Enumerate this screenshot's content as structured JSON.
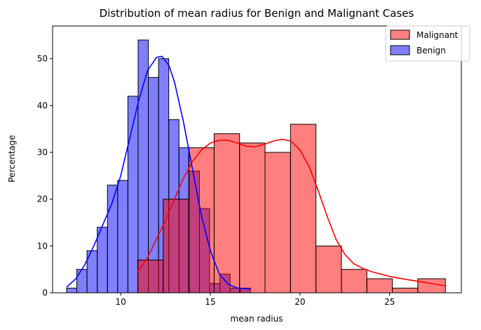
{
  "chart_data": {
    "type": "histogram",
    "title": "Distribution of mean radius for Benign and Malignant Cases",
    "xlabel": "mean radius",
    "ylabel": "Percentage",
    "xlim": [
      6.2,
      29.0
    ],
    "ylim": [
      0,
      57
    ],
    "xticks": [
      10,
      15,
      20,
      25
    ],
    "yticks": [
      0,
      10,
      20,
      30,
      40,
      50
    ],
    "grid": false,
    "legend_position": "top-right",
    "series": [
      {
        "name": "Malignant",
        "color": "#ff0000",
        "fill": "#ff8080",
        "bins": [
          {
            "x0": 10.95,
            "x1": 12.37,
            "value": 7
          },
          {
            "x0": 12.37,
            "x1": 13.79,
            "value": 20
          },
          {
            "x0": 13.79,
            "x1": 15.21,
            "value": 31
          },
          {
            "x0": 15.21,
            "x1": 16.63,
            "value": 34
          },
          {
            "x0": 16.63,
            "x1": 18.05,
            "value": 32
          },
          {
            "x0": 18.05,
            "x1": 19.47,
            "value": 30
          },
          {
            "x0": 19.47,
            "x1": 20.89,
            "value": 36
          },
          {
            "x0": 20.89,
            "x1": 22.31,
            "value": 10
          },
          {
            "x0": 22.31,
            "x1": 23.73,
            "value": 5
          },
          {
            "x0": 23.73,
            "x1": 25.15,
            "value": 3
          },
          {
            "x0": 25.15,
            "x1": 26.57,
            "value": 1
          },
          {
            "x0": 26.57,
            "x1": 28.11,
            "value": 3
          }
        ],
        "kde": [
          [
            10.95,
            4.5
          ],
          [
            11.5,
            7.5
          ],
          [
            12.0,
            11.5
          ],
          [
            12.5,
            15.5
          ],
          [
            13.0,
            20.0
          ],
          [
            13.5,
            24.5
          ],
          [
            14.0,
            28.0
          ],
          [
            14.5,
            30.5
          ],
          [
            15.0,
            32.0
          ],
          [
            15.5,
            32.6
          ],
          [
            16.0,
            32.6
          ],
          [
            16.5,
            32.0
          ],
          [
            17.0,
            31.3
          ],
          [
            17.5,
            31.2
          ],
          [
            18.0,
            31.7
          ],
          [
            18.5,
            32.4
          ],
          [
            19.0,
            32.8
          ],
          [
            19.5,
            32.4
          ],
          [
            20.0,
            30.5
          ],
          [
            20.5,
            27.0
          ],
          [
            21.0,
            22.0
          ],
          [
            21.5,
            16.5
          ],
          [
            22.0,
            11.5
          ],
          [
            22.5,
            8.2
          ],
          [
            23.0,
            6.2
          ],
          [
            23.5,
            5.2
          ],
          [
            24.0,
            4.5
          ],
          [
            25.0,
            3.5
          ],
          [
            26.0,
            2.8
          ],
          [
            27.0,
            2.2
          ],
          [
            28.11,
            1.5
          ]
        ]
      },
      {
        "name": "Benign",
        "color": "#0000ff",
        "fill": "#8080ff",
        "bins": [
          {
            "x0": 6.98,
            "x1": 7.55,
            "value": 1
          },
          {
            "x0": 7.55,
            "x1": 8.12,
            "value": 5
          },
          {
            "x0": 8.12,
            "x1": 8.69,
            "value": 9
          },
          {
            "x0": 8.69,
            "x1": 9.26,
            "value": 14
          },
          {
            "x0": 9.26,
            "x1": 9.83,
            "value": 23
          },
          {
            "x0": 9.83,
            "x1": 10.4,
            "value": 24
          },
          {
            "x0": 10.4,
            "x1": 10.97,
            "value": 42
          },
          {
            "x0": 10.97,
            "x1": 11.54,
            "value": 54
          },
          {
            "x0": 11.54,
            "x1": 12.11,
            "value": 46
          },
          {
            "x0": 12.11,
            "x1": 12.68,
            "value": 50
          },
          {
            "x0": 12.68,
            "x1": 13.25,
            "value": 37
          },
          {
            "x0": 13.25,
            "x1": 13.82,
            "value": 31
          },
          {
            "x0": 13.82,
            "x1": 14.39,
            "value": 26
          },
          {
            "x0": 14.39,
            "x1": 14.96,
            "value": 18
          },
          {
            "x0": 14.96,
            "x1": 15.53,
            "value": 2
          },
          {
            "x0": 15.53,
            "x1": 16.1,
            "value": 4
          },
          {
            "x0": 16.1,
            "x1": 16.67,
            "value": 1
          },
          {
            "x0": 16.67,
            "x1": 17.24,
            "value": 1
          }
        ],
        "kde": [
          [
            6.98,
            1.2
          ],
          [
            7.5,
            3.0
          ],
          [
            8.0,
            6.0
          ],
          [
            8.5,
            10.0
          ],
          [
            9.0,
            14.5
          ],
          [
            9.5,
            19.0
          ],
          [
            10.0,
            25.0
          ],
          [
            10.5,
            33.0
          ],
          [
            11.0,
            41.0
          ],
          [
            11.5,
            47.5
          ],
          [
            12.0,
            50.3
          ],
          [
            12.3,
            50.5
          ],
          [
            12.7,
            48.5
          ],
          [
            13.0,
            45.0
          ],
          [
            13.5,
            36.5
          ],
          [
            14.0,
            26.5
          ],
          [
            14.5,
            16.5
          ],
          [
            15.0,
            9.0
          ],
          [
            15.5,
            4.0
          ],
          [
            16.0,
            1.8
          ],
          [
            16.5,
            1.0
          ],
          [
            17.24,
            0.8
          ]
        ]
      }
    ]
  }
}
